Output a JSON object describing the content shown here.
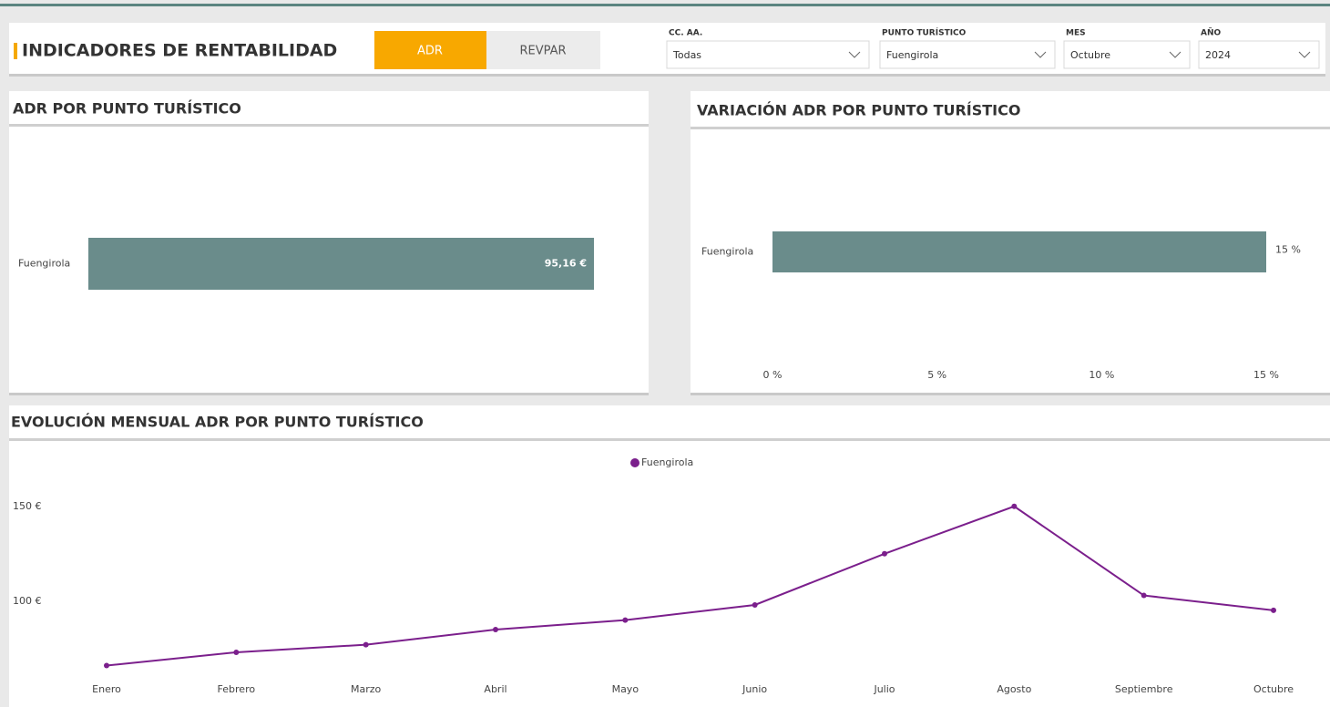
{
  "header": {
    "title": "INDICADORES DE RENTABILIDAD",
    "tabs": [
      "ADR",
      "REVPAR"
    ],
    "active_tab": 0
  },
  "filters": [
    {
      "label": "CC. AA.",
      "value": "Todas"
    },
    {
      "label": "PUNTO TURÍSTICO",
      "value": "Fuengirola"
    },
    {
      "label": "MES",
      "value": "Octubre"
    },
    {
      "label": "AÑO",
      "value": "2024"
    }
  ],
  "chart_data": [
    {
      "type": "hbar",
      "title": "ADR POR PUNTO TURÍSTICO",
      "categories": [
        "Fuengirola"
      ],
      "values": [
        95.16
      ],
      "value_labels": [
        "95,16 €"
      ],
      "color": "#6a8c8b"
    },
    {
      "type": "hbar",
      "title": "VARIACIÓN ADR POR PUNTO TURÍSTICO",
      "categories": [
        "Fuengirola"
      ],
      "values": [
        15
      ],
      "value_labels": [
        "15 %"
      ],
      "color": "#6a8c8b",
      "xlim": [
        0,
        15
      ],
      "xticks": [
        {
          "value": 0,
          "label": "0 %"
        },
        {
          "value": 5,
          "label": "5 %"
        },
        {
          "value": 10,
          "label": "10 %"
        },
        {
          "value": 15,
          "label": "15 %"
        }
      ]
    },
    {
      "type": "line",
      "title": "EVOLUCIÓN MENSUAL ADR POR PUNTO TURÍSTICO",
      "categories": [
        "Enero",
        "Febrero",
        "Marzo",
        "Abril",
        "Mayo",
        "Junio",
        "Julio",
        "Agosto",
        "Septiembre",
        "Octubre"
      ],
      "series": [
        {
          "name": "Fuengirola",
          "color": "#7b1f8c",
          "values": [
            66,
            73,
            77,
            85,
            90,
            98,
            125,
            150,
            103,
            95.16
          ]
        }
      ],
      "ylim": [
        60,
        160
      ],
      "yticks": [
        {
          "value": 100,
          "label": "100 €"
        },
        {
          "value": 150,
          "label": "150 €"
        }
      ]
    }
  ]
}
